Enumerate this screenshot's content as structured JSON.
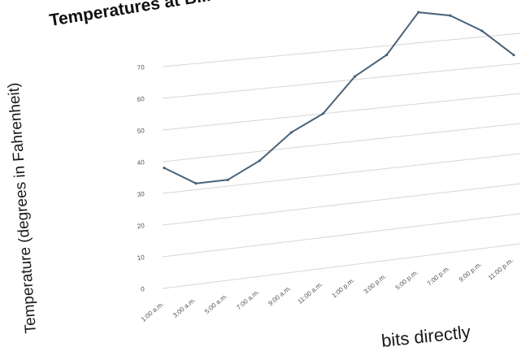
{
  "caption": {
    "text": "bits directly"
  },
  "colors": {
    "line": "#4a6278",
    "grid": "#d6d6d6",
    "text": "#1a1a1a"
  },
  "chart_data": {
    "type": "line",
    "title": "Temperatures at B...",
    "xlabel": "",
    "ylabel": "Temperature (degrees in Fahrenheit)",
    "categories": [
      "1:00 a.m.",
      "3:00 a.m.",
      "5:00 a.m.",
      "7:00 a.m.",
      "9:00 a.m.",
      "11:00 a.m.",
      "1:00 p.m.",
      "3:00 p.m.",
      "5:00 p.m.",
      "7:00 p.m.",
      "9:00 p.m.",
      "11:00 p.m."
    ],
    "series": [
      {
        "values": [
          38,
          32,
          32,
          37,
          45,
          50,
          61,
          67,
          80,
          78,
          72,
          63
        ]
      }
    ],
    "yticks": [
      "0",
      "10",
      "20",
      "30",
      "40",
      "50",
      "60",
      "70"
    ],
    "ylim": [
      0,
      80
    ],
    "grid": true,
    "legend": "none"
  }
}
